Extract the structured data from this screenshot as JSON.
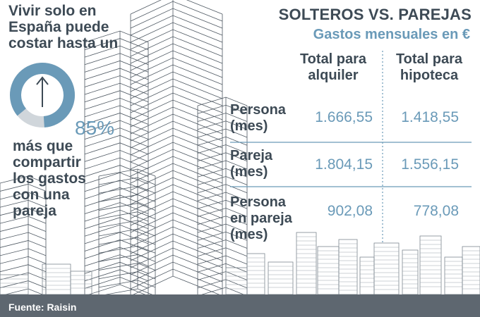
{
  "headline": [
    "Vivir solo en",
    "España puede",
    "costar hasta un"
  ],
  "percent": "85%",
  "subline": [
    "más que",
    "compartir",
    "los gastos",
    "con una",
    "pareja"
  ],
  "icon": "arrow-up-icon",
  "ring_fill_fraction": 0.85,
  "table": {
    "title": "SOLTEROS VS. PAREJAS",
    "subtitle": "Gastos mensuales en €",
    "columns": [
      [
        "Total para",
        "alquiler"
      ],
      [
        "Total para",
        "hipoteca"
      ]
    ],
    "rows": [
      {
        "label": [
          "Persona",
          "(mes)"
        ],
        "alquiler": "1.666,55",
        "hipoteca": "1.418,55"
      },
      {
        "label": [
          "Pareja",
          "(mes)"
        ],
        "alquiler": "1.804,15",
        "hipoteca": "1.556,15"
      },
      {
        "label": [
          "Persona",
          "en pareja",
          "(mes)"
        ],
        "alquiler": "902,08",
        "hipoteca": "778,08"
      }
    ]
  },
  "source": "Fuente: Raisin",
  "colors": {
    "text": "#3d4a55",
    "accent": "#6a9ab8",
    "skyline": "#5e6770",
    "ring_bg": "#d0d6db"
  }
}
